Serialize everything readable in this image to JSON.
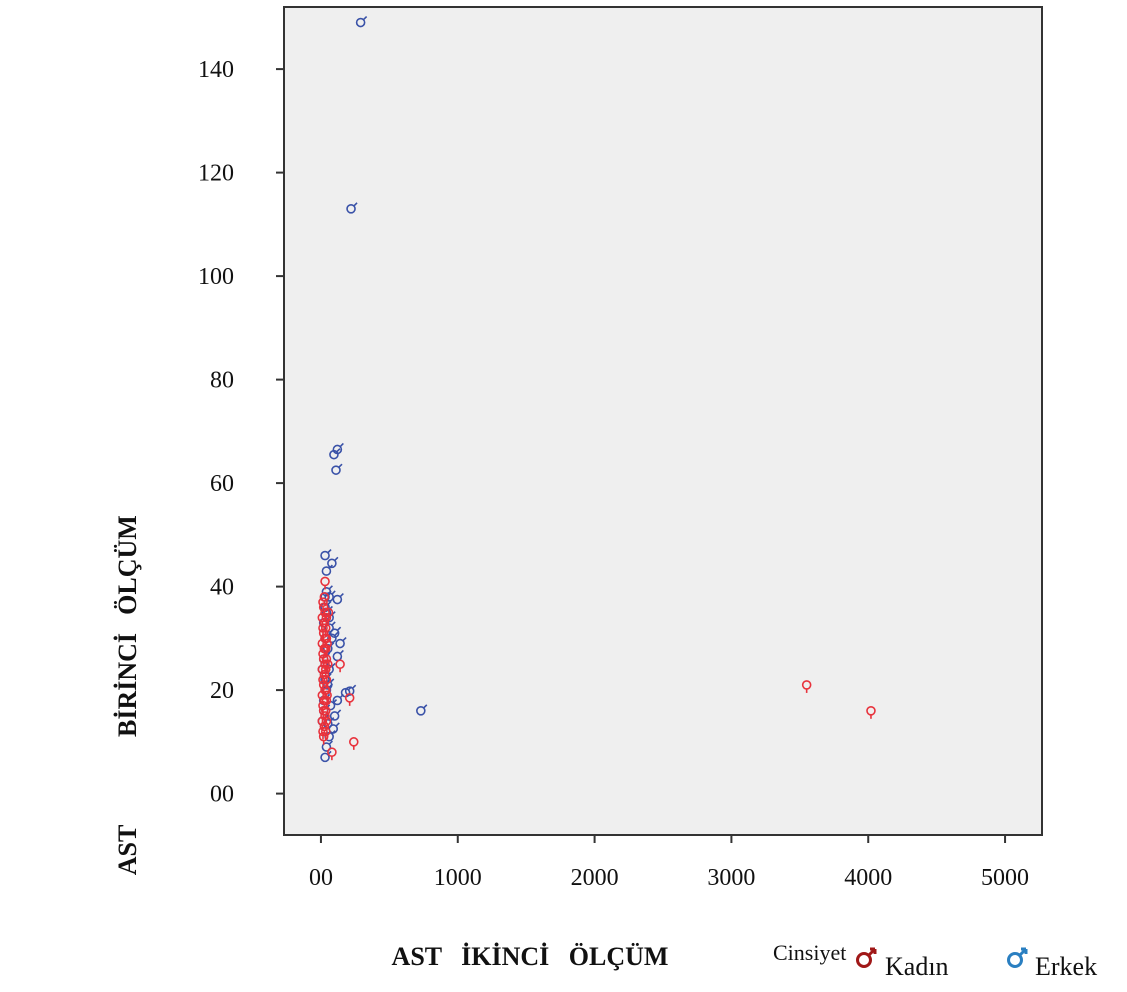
{
  "chart_data": {
    "type": "scatter",
    "title": "",
    "xlabel": "AST   İKİNCİ   ÖLÇÜM",
    "ylabel_words": [
      "AST",
      "BİRİNCİ",
      "ÖLÇÜM"
    ],
    "xlim": [
      -270,
      5270
    ],
    "ylim": [
      -8,
      152
    ],
    "x_ticks": [
      {
        "value": 0,
        "label": "00"
      },
      {
        "value": 1000,
        "label": "1000"
      },
      {
        "value": 2000,
        "label": "2000"
      },
      {
        "value": 3000,
        "label": "3000"
      },
      {
        "value": 4000,
        "label": "4000"
      },
      {
        "value": 5000,
        "label": "5000"
      }
    ],
    "y_ticks": [
      {
        "value": 0,
        "label": "00"
      },
      {
        "value": 20,
        "label": "20"
      },
      {
        "value": 40,
        "label": "40"
      },
      {
        "value": 60,
        "label": "60"
      },
      {
        "value": 80,
        "label": "80"
      },
      {
        "value": 100,
        "label": "100"
      },
      {
        "value": 120,
        "label": "120"
      },
      {
        "value": 140,
        "label": "140"
      }
    ],
    "grid": false,
    "plot_background": "#efefef",
    "legend": {
      "title": "Cinsiyet",
      "placement": "bottom-right",
      "items": [
        {
          "label": "Kadın",
          "color": "#a01818",
          "symbol": "male-symbol-icon"
        },
        {
          "label": "Erkek",
          "color": "#2a7fc1",
          "symbol": "male-symbol-icon"
        }
      ]
    },
    "series": [
      {
        "name": "Erkek",
        "color": "#3a52a8",
        "points": [
          [
            290,
            149
          ],
          [
            220,
            113
          ],
          [
            120,
            66.5
          ],
          [
            95,
            65.5
          ],
          [
            110,
            62.5
          ],
          [
            730,
            16
          ],
          [
            30,
            46
          ],
          [
            80,
            44.5
          ],
          [
            40,
            43
          ],
          [
            120,
            37.5
          ],
          [
            60,
            38
          ],
          [
            30,
            36
          ],
          [
            140,
            29
          ],
          [
            100,
            31
          ],
          [
            60,
            32
          ],
          [
            80,
            30
          ],
          [
            120,
            26.5
          ],
          [
            180,
            19.5
          ],
          [
            210,
            19.8
          ],
          [
            120,
            18
          ],
          [
            100,
            15
          ],
          [
            30,
            7
          ],
          [
            40,
            9
          ],
          [
            60,
            11
          ],
          [
            90,
            12.5
          ],
          [
            50,
            13.5
          ],
          [
            20,
            16
          ],
          [
            70,
            17
          ],
          [
            40,
            20
          ],
          [
            30,
            22
          ],
          [
            60,
            24
          ],
          [
            20,
            26
          ],
          [
            50,
            28
          ],
          [
            30,
            30
          ],
          [
            60,
            34
          ],
          [
            20,
            33
          ],
          [
            40,
            35
          ],
          [
            30,
            38
          ],
          [
            40,
            39
          ],
          [
            10,
            14
          ],
          [
            20,
            18
          ],
          [
            10,
            24
          ],
          [
            50,
            21
          ]
        ]
      },
      {
        "name": "Kadın",
        "color": "#e8323c",
        "points": [
          [
            3550,
            21
          ],
          [
            4020,
            16
          ],
          [
            240,
            10
          ],
          [
            30,
            41
          ],
          [
            80,
            8
          ],
          [
            210,
            18.5
          ],
          [
            140,
            25
          ],
          [
            20,
            11
          ],
          [
            15,
            12
          ],
          [
            25,
            13
          ],
          [
            10,
            14
          ],
          [
            30,
            15
          ],
          [
            20,
            16
          ],
          [
            15,
            17
          ],
          [
            25,
            18
          ],
          [
            10,
            19
          ],
          [
            30,
            20
          ],
          [
            20,
            21
          ],
          [
            15,
            22
          ],
          [
            25,
            23
          ],
          [
            10,
            24
          ],
          [
            30,
            25
          ],
          [
            20,
            26
          ],
          [
            15,
            27
          ],
          [
            25,
            28
          ],
          [
            10,
            29
          ],
          [
            30,
            30
          ],
          [
            20,
            31
          ],
          [
            15,
            32
          ],
          [
            25,
            33
          ],
          [
            10,
            34
          ],
          [
            30,
            35
          ],
          [
            20,
            36
          ],
          [
            15,
            37
          ],
          [
            25,
            38
          ],
          [
            35,
            12
          ],
          [
            40,
            14
          ],
          [
            35,
            16
          ],
          [
            40,
            18
          ],
          [
            35,
            20
          ],
          [
            40,
            22
          ],
          [
            35,
            24
          ],
          [
            40,
            26
          ],
          [
            35,
            28
          ],
          [
            40,
            30
          ],
          [
            35,
            32
          ],
          [
            40,
            34
          ],
          [
            45,
            19
          ],
          [
            50,
            25
          ],
          [
            45,
            29
          ],
          [
            55,
            35
          ]
        ]
      }
    ]
  }
}
